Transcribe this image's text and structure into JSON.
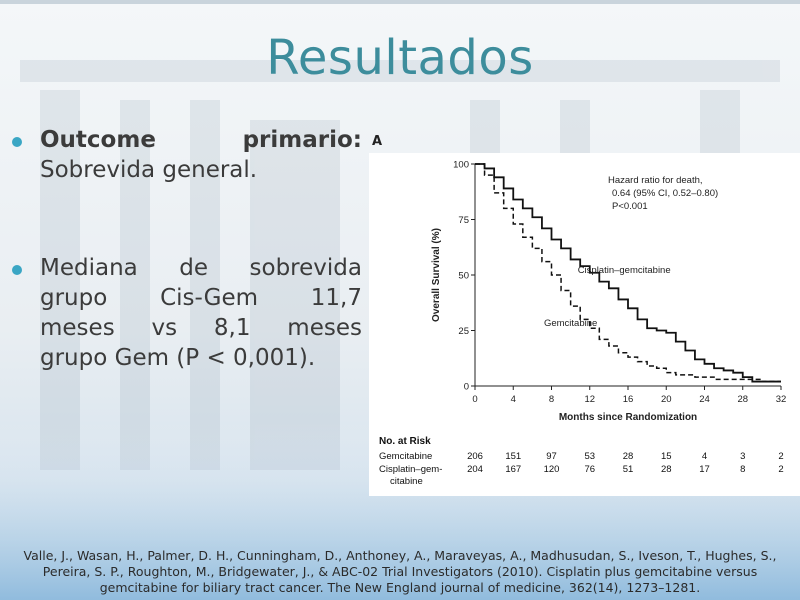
{
  "slide": {
    "title": "Resultados",
    "panel_letter": "A"
  },
  "bullets": {
    "first": {
      "bold_word1": "Outcome",
      "bold_word2": "primario:",
      "rest": "Sobrevida general."
    },
    "second": {
      "line1": [
        "Mediana",
        "de",
        "sobrevida"
      ],
      "line2": [
        "grupo",
        "Cis-Gem",
        "11,7"
      ],
      "line3": [
        "meses",
        "vs",
        "8,1",
        "meses"
      ],
      "line4": "grupo Gem (P < 0,001)."
    }
  },
  "chart_data": {
    "type": "line",
    "xlabel": "Months since Randomization",
    "ylabel": "Overall Survival (%)",
    "xlim": [
      0,
      32
    ],
    "ylim": [
      0,
      100
    ],
    "xticks": [
      0,
      4,
      8,
      12,
      16,
      20,
      24,
      28,
      32
    ],
    "yticks": [
      0,
      25,
      50,
      75,
      100
    ],
    "grid": false,
    "annotation": [
      "Hazard ratio for death,",
      "0.64 (95% CI, 0.52–0.80)",
      "P<0.001"
    ],
    "series": [
      {
        "name": "Cisplatin–gemcitabine",
        "style": "solid",
        "x": [
          0,
          1,
          2,
          3,
          4,
          5,
          6,
          7,
          8,
          9,
          10,
          11,
          12,
          13,
          14,
          15,
          16,
          17,
          18,
          19,
          20,
          21,
          22,
          23,
          24,
          25,
          26,
          27,
          28,
          29,
          30,
          31,
          32
        ],
        "y": [
          100,
          98,
          94,
          89,
          84,
          80,
          76,
          71,
          66,
          62,
          57,
          54,
          51,
          47,
          44,
          39,
          35,
          30,
          26,
          25,
          24,
          20,
          16,
          12,
          10,
          8,
          7,
          6,
          4,
          2,
          2,
          2,
          2
        ]
      },
      {
        "name": "Gemcitabine",
        "style": "dashed",
        "x": [
          0,
          1,
          2,
          3,
          4,
          5,
          6,
          7,
          8,
          9,
          10,
          11,
          12,
          13,
          14,
          15,
          16,
          17,
          18,
          19,
          20,
          21,
          22,
          23,
          24,
          25,
          26,
          27,
          28,
          29,
          30,
          31,
          32
        ],
        "y": [
          100,
          95,
          87,
          80,
          73,
          67,
          62,
          56,
          50,
          43,
          36,
          30,
          26,
          21,
          18,
          15,
          13,
          11,
          9,
          8,
          6,
          5,
          5,
          4,
          4,
          3,
          3,
          3,
          3,
          3,
          2,
          2,
          2
        ]
      }
    ],
    "risk_table": {
      "header": "No. at Risk",
      "rows": [
        {
          "label": [
            "Gemcitabine"
          ],
          "values": [
            206,
            151,
            97,
            53,
            28,
            15,
            4,
            3,
            2
          ]
        },
        {
          "label": [
            "Cisplatin–gem-",
            "citabine"
          ],
          "values": [
            204,
            167,
            120,
            76,
            51,
            28,
            17,
            8,
            2
          ]
        }
      ]
    }
  },
  "citation": {
    "lines": [
      "Valle, J., Wasan, H., Palmer, D. H., Cunningham, D., Anthoney, A., Maraveyas, A., Madhusudan, S., Iveson, T., Hughes, S.,",
      "Pereira, S. P., Roughton, M., Bridgewater, J., & ABC-02 Trial Investigators (2010). Cisplatin plus gemcitabine versus",
      "gemcitabine for biliary tract cancer. The New England journal of medicine, 362(14), 1273–1281."
    ]
  }
}
